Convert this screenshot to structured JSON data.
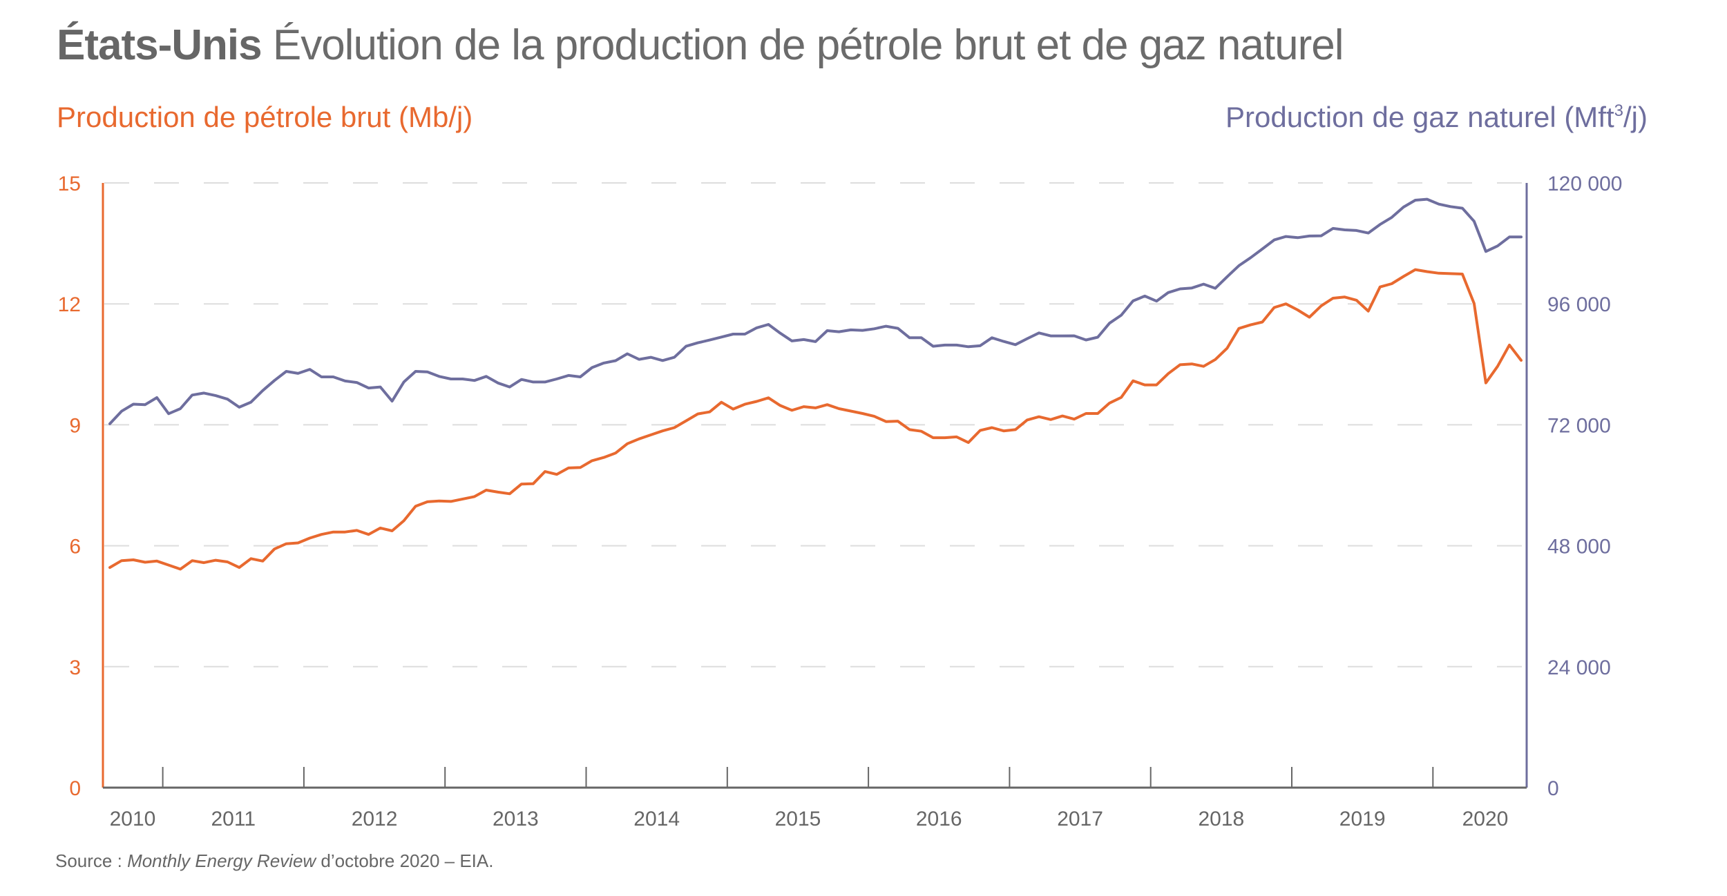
{
  "header": {
    "title_bold": "États-Unis",
    "title_rest": "Évolution de la production de pétrole brut et de gaz naturel",
    "left_axis_title": "Production de pétrole brut (Mb/j)",
    "right_axis_title_main": "Production de gaz naturel (Mft",
    "right_axis_title_sup": "3",
    "right_axis_title_end": "/j)"
  },
  "footer": {
    "source_prefix": "Source : ",
    "source_italic": "Monthly Energy Review",
    "source_suffix": " d’octobre 2020 – EIA."
  },
  "colors": {
    "oil": "#E8692F",
    "gas": "#6E6E9E",
    "text": "#666666",
    "grid": "#DDDDDD",
    "axis": "#666666"
  },
  "chart_data": {
    "type": "line",
    "title": "États-Unis Évolution de la production de pétrole brut et de gaz naturel",
    "start_month": "2010-08",
    "end_month": "2020-08",
    "x_tick_labels": [
      "2010",
      "2011",
      "2012",
      "2013",
      "2014",
      "2015",
      "2016",
      "2017",
      "2018",
      "2019",
      "2020"
    ],
    "left_axis": {
      "label": "Production de pétrole brut (Mb/j)",
      "ylim": [
        0,
        15
      ],
      "ticks": [
        "0",
        "3",
        "6",
        "9",
        "12",
        "15"
      ]
    },
    "right_axis": {
      "label": "Production de gaz naturel (Mft³/j)",
      "ylim": [
        0,
        120000
      ],
      "ticks": [
        "0",
        "24 000",
        "48 000",
        "72 000",
        "96 000",
        "120 000"
      ]
    },
    "grid": true,
    "series": [
      {
        "name": "Production de pétrole brut (Mb/j)",
        "axis": "left",
        "values": [
          5.46,
          5.63,
          5.65,
          5.59,
          5.62,
          5.52,
          5.42,
          5.63,
          5.58,
          5.64,
          5.6,
          5.46,
          5.68,
          5.62,
          5.92,
          6.05,
          6.07,
          6.19,
          6.28,
          6.34,
          6.34,
          6.38,
          6.28,
          6.44,
          6.37,
          6.62,
          6.98,
          7.09,
          7.11,
          7.1,
          7.16,
          7.22,
          7.38,
          7.33,
          7.29,
          7.53,
          7.54,
          7.84,
          7.77,
          7.93,
          7.94,
          8.11,
          8.19,
          8.3,
          8.53,
          8.65,
          8.75,
          8.85,
          8.93,
          9.1,
          9.27,
          9.32,
          9.56,
          9.39,
          9.51,
          9.58,
          9.67,
          9.48,
          9.36,
          9.45,
          9.42,
          9.5,
          9.4,
          9.34,
          9.28,
          9.21,
          9.08,
          9.09,
          8.88,
          8.84,
          8.68,
          8.68,
          8.7,
          8.56,
          8.86,
          8.93,
          8.85,
          8.88,
          9.12,
          9.2,
          9.13,
          9.22,
          9.14,
          9.28,
          9.28,
          9.54,
          9.68,
          10.09,
          9.99,
          9.99,
          10.27,
          10.49,
          10.51,
          10.45,
          10.62,
          10.9,
          11.39,
          11.48,
          11.55,
          11.91,
          12.0,
          11.85,
          11.67,
          11.95,
          12.14,
          12.17,
          12.09,
          11.82,
          12.42,
          12.5,
          12.68,
          12.85,
          12.8,
          12.76,
          12.75,
          12.74,
          12.01,
          10.04,
          10.45,
          10.98,
          10.6
        ]
      },
      {
        "name": "Production de gaz naturel (Mft³/j)",
        "axis": "right",
        "values": [
          72200,
          74700,
          76100,
          76000,
          77400,
          74200,
          75200,
          77900,
          78300,
          77800,
          77100,
          75500,
          76500,
          78800,
          80800,
          82600,
          82200,
          83000,
          81500,
          81500,
          80700,
          80400,
          79300,
          79500,
          76700,
          80500,
          82600,
          82500,
          81600,
          81100,
          81100,
          80800,
          81600,
          80300,
          79500,
          81000,
          80500,
          80500,
          81100,
          81800,
          81500,
          83350,
          84260,
          84720,
          86090,
          84990,
          85400,
          84760,
          85400,
          87590,
          88270,
          88820,
          89410,
          90000,
          90000,
          91240,
          91920,
          90190,
          88640,
          88920,
          88500,
          90690,
          90460,
          90830,
          90740,
          91060,
          91560,
          91150,
          89280,
          89280,
          87590,
          87820,
          87820,
          87500,
          87680,
          89280,
          88550,
          87910,
          89100,
          90230,
          89640,
          89640,
          89660,
          88830,
          89380,
          92170,
          93760,
          96590,
          97550,
          96550,
          98240,
          98970,
          99150,
          99920,
          99100,
          101380,
          103580,
          105170,
          106910,
          108690,
          109370,
          109140,
          109460,
          109510,
          110970,
          110690,
          110560,
          110060,
          111750,
          113160,
          115210,
          116580,
          116770,
          115800,
          115300,
          114980,
          112380,
          106400,
          107500,
          109280,
          109280
        ]
      }
    ]
  }
}
